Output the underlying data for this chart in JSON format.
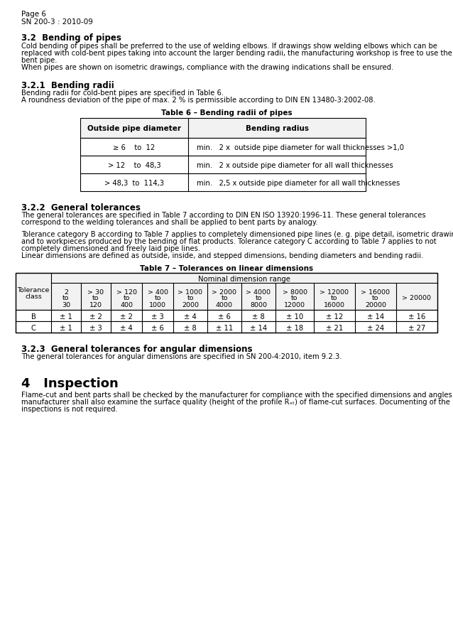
{
  "page_header": [
    "Page 6",
    "SN 200-3 : 2010-09"
  ],
  "section_32_title": "3.2  Bending of pipes",
  "section_32_text": [
    "Cold bending of pipes shall be preferred to the use of welding elbows. If drawings show welding elbows which can be",
    "replaced with cold-bent pipes taking into account the larger bending radii, the manufacturing workshop is free to use the cold-",
    "bent pipe.",
    "When pipes are shown on isometric drawings, compliance with the drawing indications shall be ensured."
  ],
  "section_321_title": "3.2.1  Bending radii",
  "section_321_text": [
    "Bending radii for cold-bent pipes are specified in Table 6.",
    "A roundness deviation of the pipe of max. 2 % is permissible according to DIN EN 13480-3:2002-08."
  ],
  "table6_title": "Table 6 – Bending radii of pipes",
  "table6_header": [
    "Outside pipe diameter",
    "Bending radius"
  ],
  "table6_rows": [
    [
      "≥ 6    to  12",
      "min.   2 x  outside pipe diameter for wall thicknesses >1,0"
    ],
    [
      "> 12    to  48,3",
      "min.   2 x outside pipe diameter for all wall thicknesses"
    ],
    [
      "> 48,3  to  114,3",
      "min.   2,5 x outside pipe diameter for all wall thicknesses"
    ]
  ],
  "section_322_title": "3.2.2  General tolerances",
  "section_322_text_1": [
    "The general tolerances are specified in Table 7 according to DIN EN ISO 13920:1996-11. These general tolerances",
    "correspond to the welding tolerances and shall be applied to bent parts by analogy."
  ],
  "section_322_text_2": [
    "Tolerance category B according to Table 7 applies to completely dimensioned pipe lines (e. g. pipe detail, isometric drawing)",
    "and to workpieces produced by the bending of flat products. Tolerance category C according to Table 7 applies to not",
    "completely dimensioned and freely laid pipe lines.",
    "Linear dimensions are defined as outside, inside, and stepped dimensions, bending diameters and bending radii."
  ],
  "table7_title": "Table 7 – Tolerances on linear dimensions",
  "table7_col_header_top": "Nominal dimension range",
  "table7_col_headers": [
    "Tolerance\nclass",
    "2\nto\n30",
    "> 30\nto\n120",
    "> 120\nto\n400",
    "> 400\nto\n1000",
    "> 1000\nto\n2000",
    "> 2000\nto\n4000",
    "> 4000\nto\n8000",
    "> 8000\nto\n12000",
    "> 12000\nto\n16000",
    "> 16000\nto\n20000",
    "> 20000"
  ],
  "table7_rows": [
    [
      "B",
      "± 1",
      "± 2",
      "± 2",
      "± 3",
      "± 4",
      "± 6",
      "± 8",
      "± 10",
      "± 12",
      "± 14",
      "± 16"
    ],
    [
      "C",
      "± 1",
      "± 3",
      "± 4",
      "± 6",
      "± 8",
      "± 11",
      "± 14",
      "± 18",
      "± 21",
      "± 24",
      "± 27"
    ]
  ],
  "section_323_title": "3.2.3  General tolerances for angular dimensions",
  "section_323_text": "The general tolerances for angular dimensions are specified in SN 200-4:2010, item 9.2.3.",
  "section_4_title": "4   Inspection",
  "section_4_text": [
    "Flame-cut and bent parts shall be checked by the manufacturer for compliance with the specified dimensions and angles. The",
    "manufacturer shall also examine the surface quality (height of the profile Rₓₜ) of flame-cut surfaces. Documenting of the",
    "inspections is not required."
  ],
  "bg_color": "#ffffff",
  "text_color": "#000000"
}
